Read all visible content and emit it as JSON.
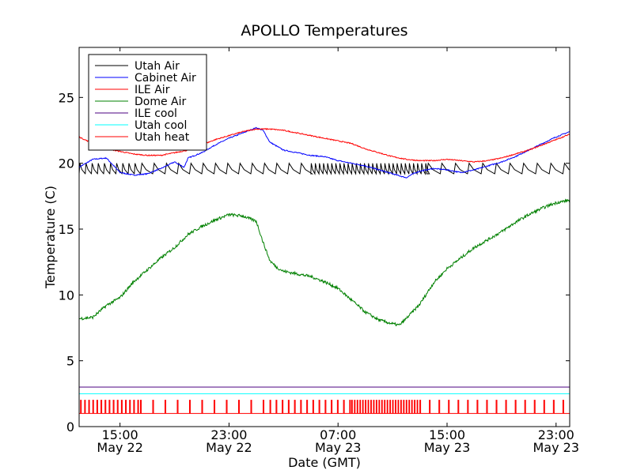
{
  "chart_data": {
    "type": "line",
    "title": "APOLLO Temperatures",
    "xlabel": "Date (GMT)",
    "ylabel": "Temperature (C)",
    "ylim": [
      0,
      28.8
    ],
    "xlim_hours": [
      0,
      36
    ],
    "grid": false,
    "legend_position": "top-left",
    "y_ticks": [
      0,
      5,
      10,
      15,
      20,
      25
    ],
    "x_ticks": [
      {
        "hour": 3,
        "time": "15:00",
        "date": "May 22"
      },
      {
        "hour": 11,
        "time": "23:00",
        "date": "May 22"
      },
      {
        "hour": 19,
        "time": "07:00",
        "date": "May 23"
      },
      {
        "hour": 27,
        "time": "15:00",
        "date": "May 23"
      },
      {
        "hour": 35,
        "time": "23:00",
        "date": "May 23"
      }
    ],
    "series": [
      {
        "name": "Utah Air",
        "color": "#000000",
        "kind": "sawtooth",
        "base": 19.6,
        "amplitude": 0.8,
        "segments": [
          {
            "from": 0,
            "to": 4.5,
            "period": 0.45
          },
          {
            "from": 4.5,
            "to": 17,
            "period": 0.9
          },
          {
            "from": 17,
            "to": 25.5,
            "period": 0.3
          },
          {
            "from": 25.5,
            "to": 36,
            "period": 1.0
          }
        ]
      },
      {
        "name": "Cabinet Air",
        "color": "#0000ff",
        "kind": "line",
        "x": [
          0,
          1,
          2,
          3,
          4,
          5,
          6,
          7,
          7.7,
          8,
          9,
          10,
          11,
          12,
          13,
          13.5,
          14,
          15,
          16,
          17,
          18,
          19,
          20,
          21,
          22,
          23,
          24,
          24.5,
          25,
          26,
          27,
          28,
          29,
          30,
          31,
          32,
          33,
          34,
          35,
          36
        ],
        "y": [
          19.7,
          20.3,
          20.4,
          19.3,
          19.1,
          19.2,
          19.6,
          20.1,
          19.7,
          20.4,
          20.8,
          21.4,
          21.9,
          22.3,
          22.7,
          22.5,
          21.6,
          21.0,
          20.8,
          20.6,
          20.5,
          20.2,
          20.0,
          19.8,
          19.5,
          19.2,
          18.9,
          19.2,
          19.4,
          19.6,
          19.5,
          19.3,
          19.5,
          19.8,
          20.1,
          20.5,
          21.0,
          21.5,
          22.0,
          22.4
        ]
      },
      {
        "name": "ILE Air",
        "color": "#ff0000",
        "kind": "line",
        "x": [
          0,
          1,
          2,
          3,
          4,
          5,
          6,
          7,
          8,
          9,
          10,
          11,
          12,
          13,
          14,
          15,
          16,
          17,
          18,
          19,
          20,
          21,
          22,
          23,
          24,
          25,
          26,
          27,
          28,
          29,
          30,
          31,
          32,
          33,
          34,
          35,
          36
        ],
        "y": [
          22.0,
          21.5,
          21.1,
          20.9,
          20.7,
          20.6,
          20.6,
          20.8,
          21.0,
          21.4,
          21.8,
          22.1,
          22.4,
          22.6,
          22.6,
          22.5,
          22.3,
          22.1,
          21.9,
          21.7,
          21.5,
          21.1,
          20.8,
          20.5,
          20.3,
          20.2,
          20.2,
          20.3,
          20.2,
          20.1,
          20.2,
          20.4,
          20.7,
          21.0,
          21.4,
          21.8,
          22.2
        ]
      },
      {
        "name": "Dome Air",
        "color": "#008000",
        "kind": "line",
        "x": [
          0,
          1,
          2,
          3,
          4,
          5,
          6,
          7,
          8,
          9,
          10,
          11,
          12,
          13,
          13.5,
          14,
          14.5,
          15,
          16,
          17,
          18,
          19,
          20,
          21,
          22,
          23,
          23.5,
          24,
          25,
          26,
          27,
          28,
          29,
          30,
          31,
          32,
          33,
          34,
          35,
          36
        ],
        "y": [
          8.2,
          8.3,
          9.2,
          9.8,
          11.0,
          11.9,
          12.8,
          13.6,
          14.6,
          15.2,
          15.7,
          16.1,
          16.0,
          15.6,
          14.0,
          12.6,
          12.1,
          11.8,
          11.6,
          11.4,
          11.0,
          10.5,
          9.6,
          8.7,
          8.1,
          7.8,
          7.7,
          8.2,
          9.3,
          10.9,
          12.0,
          12.8,
          13.6,
          14.2,
          14.8,
          15.5,
          16.1,
          16.6,
          17.0,
          17.2
        ]
      },
      {
        "name": "ILE cool",
        "color": "#4b0082",
        "kind": "constant",
        "value": 3.0
      },
      {
        "name": "Utah cool",
        "color": "#00ffff",
        "kind": "constant",
        "value": 2.5
      },
      {
        "name": "Utah heat",
        "color": "#ff0000",
        "kind": "pulses",
        "base": 1.0,
        "high": 2.0,
        "segments": [
          {
            "from": 0.1,
            "to": 4.5,
            "period": 0.3
          },
          {
            "from": 4.5,
            "to": 14,
            "period": 0.9
          },
          {
            "from": 14,
            "to": 20,
            "period": 0.45
          },
          {
            "from": 20,
            "to": 25,
            "period": 0.2
          },
          {
            "from": 25,
            "to": 36,
            "period": 0.7
          }
        ]
      }
    ]
  }
}
